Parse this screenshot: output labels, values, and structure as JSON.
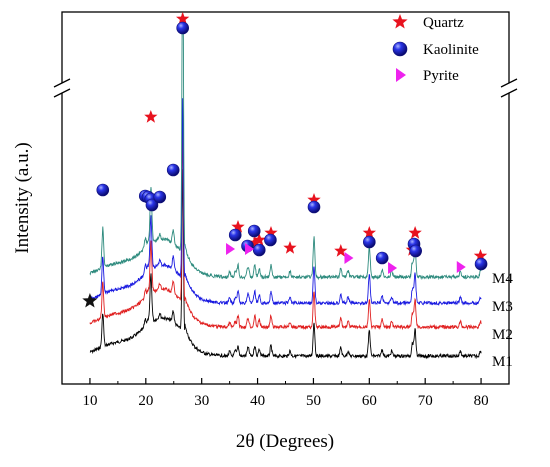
{
  "chart_data": {
    "type": "line",
    "xlabel": "2θ (Degrees)",
    "ylabel": "Intensity (a.u.)",
    "xlim": [
      5,
      85
    ],
    "x_ticks": [
      "10",
      "20",
      "30",
      "40",
      "50",
      "60",
      "70",
      "80"
    ],
    "y_ticks_shown": false,
    "y_axis_break": true,
    "series": [
      {
        "name": "M1",
        "color": "#000000",
        "offset": 0
      },
      {
        "name": "M2",
        "color": "#e02020",
        "offset": 1
      },
      {
        "name": "M3",
        "color": "#1a1ae0",
        "offset": 2
      },
      {
        "name": "M4",
        "color": "#2e8b7e",
        "offset": 3
      }
    ],
    "legend": {
      "placement": "top-right",
      "entries": [
        {
          "label": "Quartz",
          "marker": "star",
          "color": "#e8121e"
        },
        {
          "label": "Kaolinite",
          "marker": "sphere",
          "color": "#1626d6"
        },
        {
          "label": "Pyrite",
          "marker": "triangle",
          "color": "#ee22ee"
        }
      ]
    },
    "peaks": [
      {
        "phase": "Quartz",
        "two_theta": [
          20.9,
          26.6,
          36.5,
          39.5,
          40.3,
          42.4,
          45.8,
          50.1,
          54.9,
          60.0,
          67.7,
          68.2,
          79.9
        ]
      },
      {
        "phase": "Kaolinite",
        "two_theta": [
          12.3,
          19.9,
          20.4,
          20.9,
          21.1,
          22.5,
          24.9,
          26.6,
          36.0,
          38.2,
          39.4,
          40.3,
          42.3,
          50.1,
          60.0,
          62.3,
          68.0,
          68.3,
          80.0
        ]
      },
      {
        "phase": "Pyrite",
        "two_theta": [
          35.0,
          38.4,
          56.2,
          64.0,
          76.3
        ]
      }
    ],
    "annotation_star_x": 10
  }
}
